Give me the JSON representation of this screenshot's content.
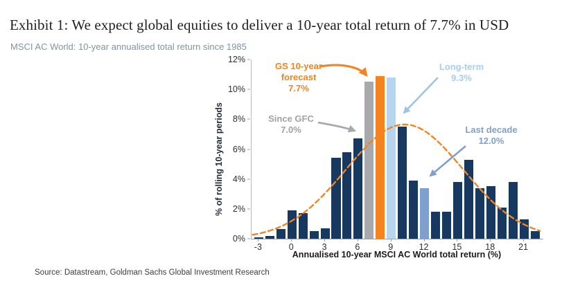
{
  "page": {
    "title": "Exhibit 1: We expect global equities to deliver a 10-year total return of 7.7% in USD",
    "subtitle": "MSCI AC World: 10-year annualised total return since 1985",
    "source": "Source: Datastream, Goldman Sachs Global Investment Research"
  },
  "colors": {
    "navy": "#17395f",
    "orange": "#f5831f",
    "gray": "#a7a9ac",
    "lightblue": "#b7d5ee",
    "medblue": "#7f9fce",
    "lightblue_arrow": "#9cc3e8",
    "gray_text": "#a0a2a5",
    "axis": "#9fa2a5"
  },
  "chart_data": {
    "type": "bar",
    "title": "MSCI AC World: 10-year annualised total return since 1985",
    "xlabel": "Annualised 10-year MSCI AC World total return (%)",
    "ylabel": "% of rolling 10-year periods",
    "xlim": [
      -3.65,
      22.75
    ],
    "ylim": [
      0,
      12
    ],
    "bar_width_units": 0.82,
    "x_ticks": [
      {
        "value": -3,
        "label": "-3"
      },
      {
        "value": 0,
        "label": "0"
      },
      {
        "value": 3,
        "label": "3"
      },
      {
        "value": 6,
        "label": "6"
      },
      {
        "value": 9,
        "label": "9"
      },
      {
        "value": 12,
        "label": "12"
      },
      {
        "value": 15,
        "label": "15"
      },
      {
        "value": 18,
        "label": "18"
      },
      {
        "value": 21,
        "label": "21"
      }
    ],
    "y_ticks": [
      {
        "value": 0,
        "label": "0%"
      },
      {
        "value": 2,
        "label": "2%"
      },
      {
        "value": 4,
        "label": "4%"
      },
      {
        "value": 6,
        "label": "6%"
      },
      {
        "value": 8,
        "label": "8%"
      },
      {
        "value": 10,
        "label": "10%"
      },
      {
        "value": 12,
        "label": "12%"
      }
    ],
    "bars": [
      {
        "x": -3,
        "value": 0.1,
        "color": "navy"
      },
      {
        "x": -2,
        "value": 0.2,
        "color": "navy"
      },
      {
        "x": -1,
        "value": 0.65,
        "color": "navy"
      },
      {
        "x": 0,
        "value": 1.9,
        "color": "navy"
      },
      {
        "x": 1,
        "value": 1.7,
        "color": "navy"
      },
      {
        "x": 2,
        "value": 0.5,
        "color": "navy"
      },
      {
        "x": 3,
        "value": 0.7,
        "color": "navy"
      },
      {
        "x": 4,
        "value": 5.4,
        "color": "navy"
      },
      {
        "x": 5,
        "value": 5.8,
        "color": "navy"
      },
      {
        "x": 6,
        "value": 6.7,
        "color": "navy"
      },
      {
        "x": 7,
        "value": 10.5,
        "color": "gray"
      },
      {
        "x": 8,
        "value": 10.9,
        "color": "orange"
      },
      {
        "x": 9,
        "value": 10.8,
        "color": "lightblue"
      },
      {
        "x": 10,
        "value": 7.5,
        "color": "navy"
      },
      {
        "x": 11,
        "value": 3.9,
        "color": "navy"
      },
      {
        "x": 12,
        "value": 3.4,
        "color": "medblue"
      },
      {
        "x": 13,
        "value": 1.8,
        "color": "navy"
      },
      {
        "x": 14,
        "value": 1.8,
        "color": "navy"
      },
      {
        "x": 15,
        "value": 3.8,
        "color": "navy"
      },
      {
        "x": 16,
        "value": 5.3,
        "color": "navy"
      },
      {
        "x": 17,
        "value": 3.4,
        "color": "navy"
      },
      {
        "x": 18,
        "value": 3.5,
        "color": "navy"
      },
      {
        "x": 19,
        "value": 2.1,
        "color": "navy"
      },
      {
        "x": 20,
        "value": 3.8,
        "color": "navy"
      },
      {
        "x": 21,
        "value": 1.3,
        "color": "navy"
      },
      {
        "x": 22,
        "value": 0.5,
        "color": "navy"
      }
    ],
    "normal_curve": {
      "shape": "gaussian-dashed",
      "mean": 10.2,
      "sigma": 5.3,
      "peak": 7.65,
      "x_start": -3.55,
      "x_end": 22.6,
      "color": "orange"
    },
    "annotations": [
      {
        "id": "gs-forecast",
        "label": "GS 10-year forecast",
        "value": "7.7%",
        "target_bar_x": 8
      },
      {
        "id": "since-gfc",
        "label": "Since GFC",
        "value": "7.0%",
        "target_bar_x": 7
      },
      {
        "id": "long-term",
        "label": "Long-term",
        "value": "9.3%",
        "target_bar_x": 9
      },
      {
        "id": "last-decade",
        "label": "Last decade",
        "value": "12.0%",
        "target_bar_x": 12
      }
    ],
    "legend": "none",
    "grid": false
  }
}
